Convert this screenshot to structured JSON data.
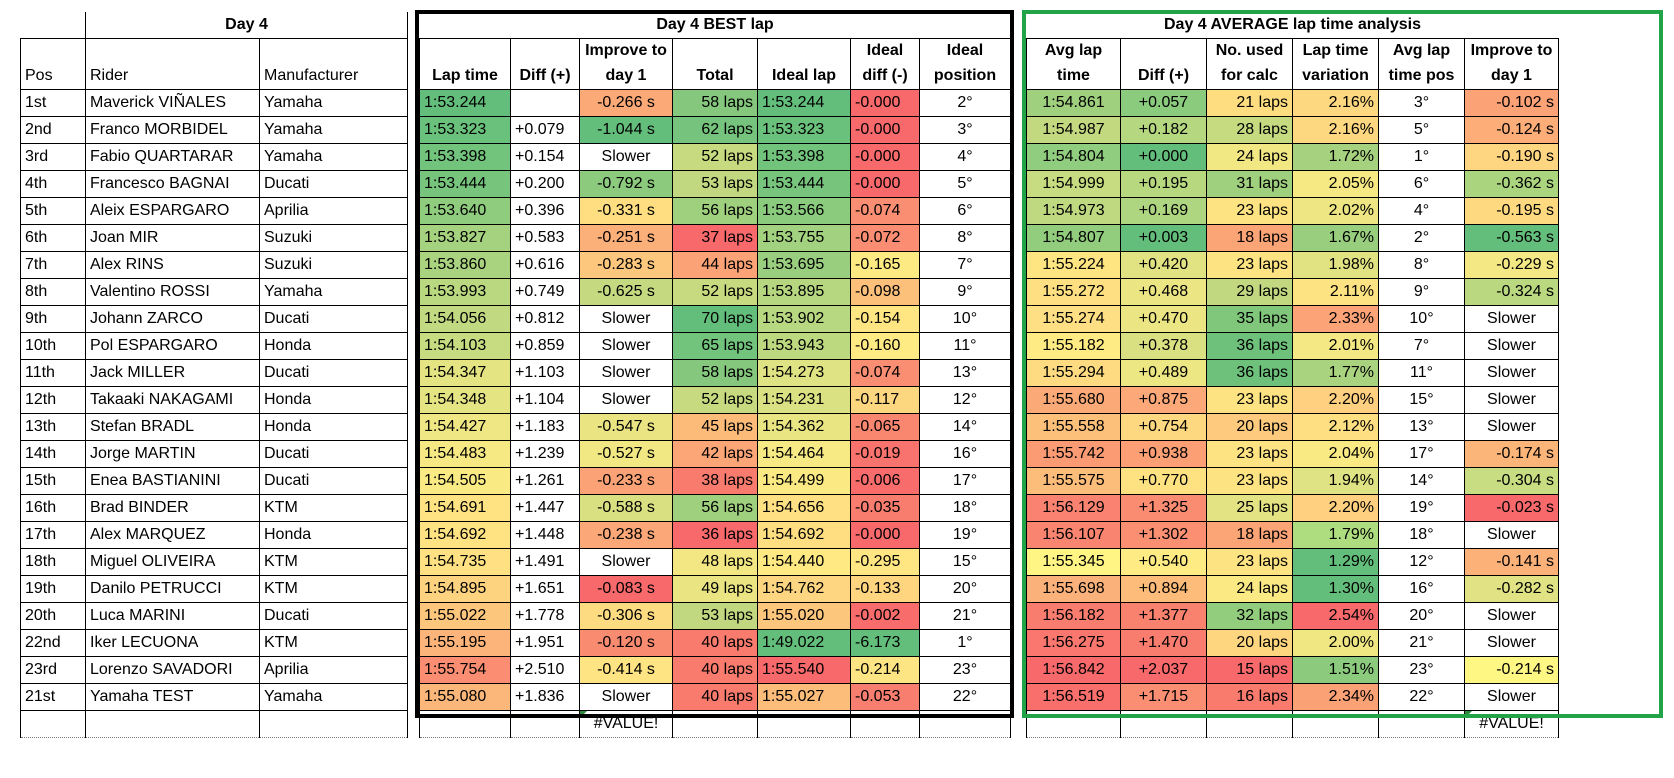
{
  "day_table": {
    "title": "Day 4",
    "headers": [
      "Pos",
      "Rider",
      "Manufacturer"
    ],
    "rows": [
      [
        "1st",
        "Maverick VIÑALES",
        "Yamaha"
      ],
      [
        "2nd",
        "Franco MORBIDEL",
        "Yamaha"
      ],
      [
        "3rd",
        "Fabio QUARTARAR",
        "Yamaha"
      ],
      [
        "4th",
        "Francesco BAGNAI",
        "Ducati"
      ],
      [
        "5th",
        "Aleix ESPARGARO",
        "Aprilia"
      ],
      [
        "6th",
        "Joan MIR",
        "Suzuki"
      ],
      [
        "7th",
        "Alex RINS",
        "Suzuki"
      ],
      [
        "8th",
        "Valentino ROSSI",
        "Yamaha"
      ],
      [
        "9th",
        "Johann ZARCO",
        "Ducati"
      ],
      [
        "10th",
        "Pol ESPARGARO",
        "Honda"
      ],
      [
        "11th",
        "Jack MILLER",
        "Ducati"
      ],
      [
        "12th",
        "Takaaki NAKAGAMI",
        "Honda"
      ],
      [
        "13th",
        "Stefan BRADL",
        "Honda"
      ],
      [
        "14th",
        "Jorge MARTIN",
        "Ducati"
      ],
      [
        "15th",
        "Enea BASTIANINI",
        "Ducati"
      ],
      [
        "16th",
        "Brad BINDER",
        "KTM"
      ],
      [
        "17th",
        "Alex MARQUEZ",
        "Honda"
      ],
      [
        "18th",
        "Miguel OLIVEIRA",
        "KTM"
      ],
      [
        "19th",
        "Danilo PETRUCCI",
        "KTM"
      ],
      [
        "20th",
        "Luca MARINI",
        "Ducati"
      ],
      [
        "22nd",
        "Iker LECUONA",
        "KTM"
      ],
      [
        "23rd",
        "Lorenzo SAVADORI",
        "Aprilia"
      ],
      [
        "21st",
        "Yamaha TEST",
        "Yamaha"
      ]
    ]
  },
  "best_lap": {
    "title": "Day 4 BEST lap",
    "headers_top": [
      "",
      "",
      "Improve to",
      "",
      "",
      "Ideal",
      "Ideal"
    ],
    "headers_bottom": [
      "Lap time",
      "Diff (+)",
      "day 1",
      "Total",
      "Ideal lap",
      "diff (-)",
      "position"
    ],
    "footer_value": "#VALUE!",
    "rows": [
      [
        "1:53.244",
        "",
        "-0.266 s",
        "58 laps",
        "1:53.244",
        "-0.000",
        "2°"
      ],
      [
        "1:53.323",
        "+0.079",
        "-1.044 s",
        "62 laps",
        "1:53.323",
        "-0.000",
        "3°"
      ],
      [
        "1:53.398",
        "+0.154",
        "Slower",
        "52 laps",
        "1:53.398",
        "-0.000",
        "4°"
      ],
      [
        "1:53.444",
        "+0.200",
        "-0.792 s",
        "53 laps",
        "1:53.444",
        "-0.000",
        "5°"
      ],
      [
        "1:53.640",
        "+0.396",
        "-0.331 s",
        "56 laps",
        "1:53.566",
        "-0.074",
        "6°"
      ],
      [
        "1:53.827",
        "+0.583",
        "-0.251 s",
        "37 laps",
        "1:53.755",
        "-0.072",
        "8°"
      ],
      [
        "1:53.860",
        "+0.616",
        "-0.283 s",
        "44 laps",
        "1:53.695",
        "-0.165",
        "7°"
      ],
      [
        "1:53.993",
        "+0.749",
        "-0.625 s",
        "52 laps",
        "1:53.895",
        "-0.098",
        "9°"
      ],
      [
        "1:54.056",
        "+0.812",
        "Slower",
        "70 laps",
        "1:53.902",
        "-0.154",
        "10°"
      ],
      [
        "1:54.103",
        "+0.859",
        "Slower",
        "65 laps",
        "1:53.943",
        "-0.160",
        "11°"
      ],
      [
        "1:54.347",
        "+1.103",
        "Slower",
        "58 laps",
        "1:54.273",
        "-0.074",
        "13°"
      ],
      [
        "1:54.348",
        "+1.104",
        "Slower",
        "52 laps",
        "1:54.231",
        "-0.117",
        "12°"
      ],
      [
        "1:54.427",
        "+1.183",
        "-0.547 s",
        "45 laps",
        "1:54.362",
        "-0.065",
        "14°"
      ],
      [
        "1:54.483",
        "+1.239",
        "-0.527 s",
        "42 laps",
        "1:54.464",
        "-0.019",
        "16°"
      ],
      [
        "1:54.505",
        "+1.261",
        "-0.233 s",
        "38 laps",
        "1:54.499",
        "-0.006",
        "17°"
      ],
      [
        "1:54.691",
        "+1.447",
        "-0.588 s",
        "56 laps",
        "1:54.656",
        "-0.035",
        "18°"
      ],
      [
        "1:54.692",
        "+1.448",
        "-0.238 s",
        "36 laps",
        "1:54.692",
        "-0.000",
        "19°"
      ],
      [
        "1:54.735",
        "+1.491",
        "Slower",
        "48 laps",
        "1:54.440",
        "-0.295",
        "15°"
      ],
      [
        "1:54.895",
        "+1.651",
        "-0.083 s",
        "49 laps",
        "1:54.762",
        "-0.133",
        "20°"
      ],
      [
        "1:55.022",
        "+1.778",
        "-0.306 s",
        "53 laps",
        "1:55.020",
        "-0.002",
        "21°"
      ],
      [
        "1:55.195",
        "+1.951",
        "-0.120 s",
        "40 laps",
        "1:49.022",
        "-6.173",
        "1°"
      ],
      [
        "1:55.754",
        "+2.510",
        "-0.414 s",
        "40 laps",
        "1:55.540",
        "-0.214",
        "23°"
      ],
      [
        "1:55.080",
        "+1.836",
        "Slower",
        "40 laps",
        "1:55.027",
        "-0.053",
        "22°"
      ]
    ],
    "colors": [
      [
        "#63be7b",
        "#ffffff",
        "#fbaa77",
        "#85c87d",
        "#63be7b",
        "#f8696b",
        "#ffffff"
      ],
      [
        "#6ac17b",
        "#ffffff",
        "#63be7b",
        "#75c37c",
        "#6ac17b",
        "#f8696b",
        "#ffffff"
      ],
      [
        "#72c37c",
        "#ffffff",
        "#ffffff",
        "#c8da7f",
        "#72c37c",
        "#f8696b",
        "#ffffff"
      ],
      [
        "#77c47c",
        "#ffffff",
        "#8ccb7e",
        "#c1d880",
        "#77c47c",
        "#f8696b",
        "#ffffff"
      ],
      [
        "#8fcc7e",
        "#ffffff",
        "#fede81",
        "#9fd07e",
        "#8acb7e",
        "#fa8e72",
        "#ffffff"
      ],
      [
        "#a5d27f",
        "#ffffff",
        "#fcb079",
        "#f8696b",
        "#a2d17f",
        "#fa8d72",
        "#ffffff"
      ],
      [
        "#a9d37f",
        "#ffffff",
        "#fdc87d",
        "#fba376",
        "#98ce7e",
        "#feea83",
        "#ffffff"
      ],
      [
        "#b9d880",
        "#ffffff",
        "#c5d980",
        "#c8da7f",
        "#b6d780",
        "#fdc07b",
        "#ffffff"
      ],
      [
        "#c1da81",
        "#ffffff",
        "#ffffff",
        "#63be7b",
        "#b7d880",
        "#ffe683",
        "#ffffff"
      ],
      [
        "#c7dc81",
        "#ffffff",
        "#ffffff",
        "#72c37c",
        "#bcd980",
        "#ffeb84",
        "#ffffff"
      ],
      [
        "#e5e483",
        "#ffffff",
        "#ffffff",
        "#85c87d",
        "#e0e383",
        "#fa8e72",
        "#ffffff"
      ],
      [
        "#e5e483",
        "#ffffff",
        "#ffffff",
        "#c8da7f",
        "#dae182",
        "#fdd680",
        "#ffffff"
      ],
      [
        "#efe783",
        "#ffffff",
        "#eae582",
        "#fdbb7a",
        "#e9e583",
        "#f98770",
        "#ffffff"
      ],
      [
        "#f6e983",
        "#ffffff",
        "#f1e783",
        "#fca677",
        "#f7e983",
        "#f8736d",
        "#ffffff"
      ],
      [
        "#f9ea84",
        "#ffffff",
        "#fba376",
        "#f97b6e",
        "#fbea84",
        "#f86c6c",
        "#ffffff"
      ],
      [
        "#ffe383",
        "#ffffff",
        "#d9e082",
        "#9fd07e",
        "#ffe183",
        "#f87d6e",
        "#ffffff"
      ],
      [
        "#ffe383",
        "#ffffff",
        "#fba777",
        "#f8696b",
        "#ffde82",
        "#f8696b",
        "#ffffff"
      ],
      [
        "#ffe183",
        "#ffffff",
        "#ffffff",
        "#f2e783",
        "#fee983",
        "#ffe683",
        "#ffffff"
      ],
      [
        "#fed380",
        "#ffffff",
        "#f8696b",
        "#eae582",
        "#fed580",
        "#ffd57f",
        "#ffffff"
      ],
      [
        "#fdc67d",
        "#ffffff",
        "#fddb81",
        "#c1d880",
        "#fdc67d",
        "#f86c6b",
        "#ffffff"
      ],
      [
        "#fdb47a",
        "#ffffff",
        "#f98b71",
        "#f87b6e",
        "#63be7b",
        "#63be7b",
        "#ffffff"
      ],
      [
        "#fa8d72",
        "#ffffff",
        "#fee483",
        "#f87b6e",
        "#f8696b",
        "#fee583",
        "#ffffff"
      ],
      [
        "#fbb779",
        "#ffffff",
        "#ffffff",
        "#f87b6e",
        "#fcbc7a",
        "#f87f6f",
        "#ffffff"
      ]
    ]
  },
  "avg_lap": {
    "title": "Day 4 AVERAGE lap time analysis",
    "headers_top": [
      "Avg lap",
      "",
      "No. used",
      "Lap time",
      "Avg lap",
      "Improve to"
    ],
    "headers_bottom": [
      "time",
      "Diff (+)",
      "for calc",
      "variation",
      "time pos",
      "day 1"
    ],
    "footer_value": "#VALUE!",
    "rows": [
      [
        "1:54.861",
        "+0.057",
        "21 laps",
        "2.16%",
        "3°",
        "-0.102 s"
      ],
      [
        "1:54.987",
        "+0.182",
        "28 laps",
        "2.16%",
        "5°",
        "-0.124 s"
      ],
      [
        "1:54.804",
        "+0.000",
        "24 laps",
        "1.72%",
        "1°",
        "-0.190 s"
      ],
      [
        "1:54.999",
        "+0.195",
        "31 laps",
        "2.05%",
        "6°",
        "-0.362 s"
      ],
      [
        "1:54.973",
        "+0.169",
        "23 laps",
        "2.02%",
        "4°",
        "-0.195 s"
      ],
      [
        "1:54.807",
        "+0.003",
        "18 laps",
        "1.67%",
        "2°",
        "-0.563 s"
      ],
      [
        "1:55.224",
        "+0.420",
        "23 laps",
        "1.98%",
        "8°",
        "-0.229 s"
      ],
      [
        "1:55.272",
        "+0.468",
        "29 laps",
        "2.11%",
        "9°",
        "-0.324 s"
      ],
      [
        "1:55.274",
        "+0.470",
        "35 laps",
        "2.33%",
        "10°",
        "Slower"
      ],
      [
        "1:55.182",
        "+0.378",
        "36 laps",
        "2.01%",
        "7°",
        "Slower"
      ],
      [
        "1:55.294",
        "+0.489",
        "36 laps",
        "1.77%",
        "11°",
        "Slower"
      ],
      [
        "1:55.680",
        "+0.875",
        "23 laps",
        "2.20%",
        "15°",
        "Slower"
      ],
      [
        "1:55.558",
        "+0.754",
        "20 laps",
        "2.12%",
        "13°",
        "Slower"
      ],
      [
        "1:55.742",
        "+0.938",
        "23 laps",
        "2.04%",
        "17°",
        "-0.174 s"
      ],
      [
        "1:55.575",
        "+0.770",
        "23 laps",
        "1.94%",
        "14°",
        "-0.304 s"
      ],
      [
        "1:56.129",
        "+1.325",
        "25 laps",
        "2.20%",
        "19°",
        "-0.023 s"
      ],
      [
        "1:56.107",
        "+1.302",
        "18 laps",
        "1.79%",
        "18°",
        "Slower"
      ],
      [
        "1:55.345",
        "+0.540",
        "23 laps",
        "1.29%",
        "12°",
        "-0.141 s"
      ],
      [
        "1:55.698",
        "+0.894",
        "24 laps",
        "1.30%",
        "16°",
        "-0.282 s"
      ],
      [
        "1:56.182",
        "+1.377",
        "32 laps",
        "2.54%",
        "20°",
        "Slower"
      ],
      [
        "1:56.275",
        "+1.470",
        "20 laps",
        "2.00%",
        "21°",
        "Slower"
      ],
      [
        "1:56.842",
        "+2.037",
        "15 laps",
        "1.51%",
        "23°",
        "-0.214 s"
      ],
      [
        "1:56.519",
        "+1.715",
        "16 laps",
        "2.34%",
        "22°",
        "Slower"
      ]
    ],
    "colors": [
      [
        "#9fd07e",
        "#8acb7e",
        "#fedd81",
        "#fed881",
        "#ffffff",
        "#fba276"
      ],
      [
        "#c3d980",
        "#b5d780",
        "#c6da80",
        "#fed881",
        "#ffffff",
        "#fcad78"
      ],
      [
        "#91cd7e",
        "#63be7b",
        "#f1e783",
        "#a6d27f",
        "#ffffff",
        "#fed581"
      ],
      [
        "#c7dc81",
        "#b8d880",
        "#9fd07e",
        "#f6e983",
        "#ffffff",
        "#abd47f"
      ],
      [
        "#bfd980",
        "#aed580",
        "#fee383",
        "#ede683",
        "#ffffff",
        "#fed980"
      ],
      [
        "#92cd7e",
        "#63be7b",
        "#fba476",
        "#98ce7e",
        "#ffffff",
        "#63be7b"
      ],
      [
        "#fee582",
        "#e1e383",
        "#fee383",
        "#e1e383",
        "#ffffff",
        "#f3e883"
      ],
      [
        "#fee083",
        "#ebe683",
        "#c1d880",
        "#fee383",
        "#ffffff",
        "#b9d880"
      ],
      [
        "#fedf83",
        "#ebe683",
        "#80c77c",
        "#fca477",
        "#ffffff",
        "#ffffff"
      ],
      [
        "#feeb84",
        "#d8e082",
        "#6dc17b",
        "#f3e883",
        "#ffffff",
        "#ffffff"
      ],
      [
        "#fedb81",
        "#ece683",
        "#6dc17b",
        "#a9d37f",
        "#ffffff",
        "#ffffff"
      ],
      [
        "#fbaa77",
        "#fca878",
        "#fee383",
        "#fed080",
        "#ffffff",
        "#ffffff"
      ],
      [
        "#fcc07b",
        "#fed880",
        "#feca7e",
        "#fedf82",
        "#ffffff",
        "#ffffff"
      ],
      [
        "#fa9b74",
        "#fc9f75",
        "#fee383",
        "#f9ea84",
        "#ffffff",
        "#fcb579"
      ],
      [
        "#fcbc7a",
        "#fee282",
        "#fee383",
        "#e0e383",
        "#ffffff",
        "#c8dc81"
      ],
      [
        "#f98370",
        "#fa8c72",
        "#e4e383",
        "#fed080",
        "#ffffff",
        "#f8696b"
      ],
      [
        "#f98570",
        "#fa8f72",
        "#fba476",
        "#addd7f",
        "#ffffff",
        "#ffffff"
      ],
      [
        "#fef584",
        "#feeb84",
        "#fee383",
        "#63be7b",
        "#ffffff",
        "#fcb179"
      ],
      [
        "#fbb27a",
        "#fdbc7a",
        "#fbea84",
        "#64be7b",
        "#ffffff",
        "#e0e283"
      ],
      [
        "#f97d6f",
        "#f9826f",
        "#92cd7e",
        "#f8696b",
        "#ffffff",
        "#ffffff"
      ],
      [
        "#f9776e",
        "#f87d6e",
        "#fed680",
        "#f0e783",
        "#ffffff",
        "#ffffff"
      ],
      [
        "#f8696b",
        "#f8696b",
        "#f8696b",
        "#8ccb7e",
        "#ffffff",
        "#fef783"
      ],
      [
        "#f86f6c",
        "#fa8e72",
        "#f97b6e",
        "#fba176",
        "#ffffff",
        "#ffffff"
      ]
    ]
  }
}
